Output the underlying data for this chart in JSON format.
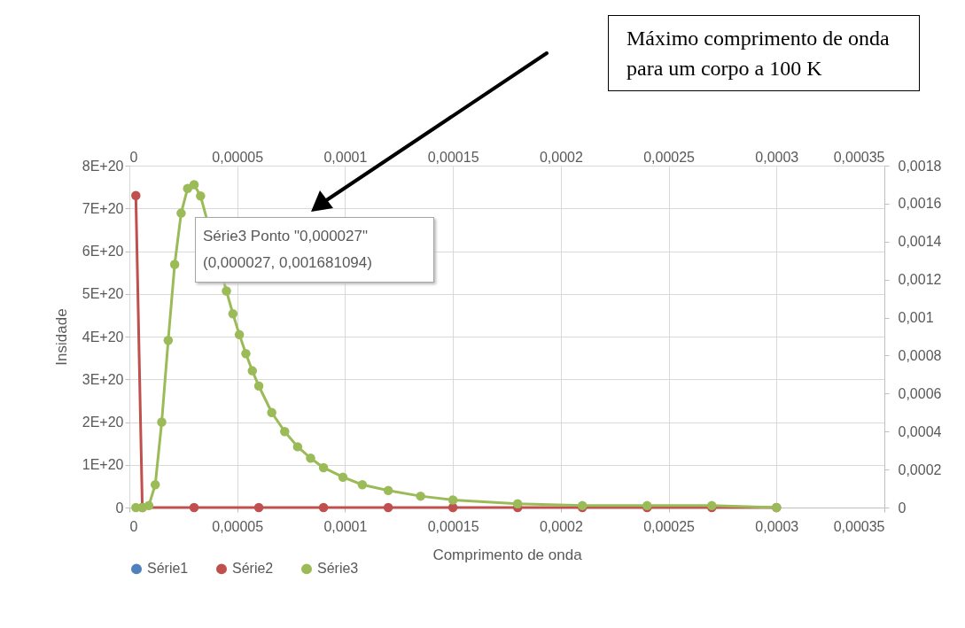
{
  "chart_data": {
    "type": "line",
    "xlabel": "Comprimento de onda",
    "ylabel": "Insidade",
    "xlim": [
      0,
      0.00035
    ],
    "xticks": [
      0,
      {
        "value": 5e-05,
        "label": "0,00005"
      },
      {
        "value": 0.0001,
        "label": "0,0001"
      },
      {
        "value": 0.00015,
        "label": "0,00015"
      },
      {
        "value": 0.0002,
        "label": "0,0002"
      },
      {
        "value": 0.00025,
        "label": "0,00025"
      },
      {
        "value": 0.0003,
        "label": "0,0003"
      },
      {
        "value": 0.00035,
        "label": "0,00035"
      }
    ],
    "x2lim": [
      0,
      0.00035
    ],
    "x2ticks": [
      0,
      {
        "value": 5e-05,
        "label": "0,00005"
      },
      {
        "value": 0.0001,
        "label": "0,0001"
      },
      {
        "value": 0.00015,
        "label": "0,00015"
      },
      {
        "value": 0.0002,
        "label": "0,0002"
      },
      {
        "value": 0.00025,
        "label": "0,00025"
      },
      {
        "value": 0.0003,
        "label": "0,0003"
      },
      {
        "value": 0.00035,
        "label": "0,00035"
      }
    ],
    "ylim": [
      0,
      8e+20
    ],
    "yticks": [
      0,
      {
        "value": 1e+20,
        "label": "1E+20"
      },
      {
        "value": 2e+20,
        "label": "2E+20"
      },
      {
        "value": 3e+20,
        "label": "3E+20"
      },
      {
        "value": 4e+20,
        "label": "4E+20"
      },
      {
        "value": 5e+20,
        "label": "5E+20"
      },
      {
        "value": 6e+20,
        "label": "6E+20"
      },
      {
        "value": 7e+20,
        "label": "7E+20"
      },
      {
        "value": 8e+20,
        "label": "8E+20"
      }
    ],
    "y2lim": [
      0,
      0.0018
    ],
    "y2ticks": [
      0,
      {
        "value": 0.0002,
        "label": "0,0002"
      },
      {
        "value": 0.0004,
        "label": "0,0004"
      },
      {
        "value": 0.0006,
        "label": "0,0006"
      },
      {
        "value": 0.0008,
        "label": "0,0008"
      },
      {
        "value": 0.001,
        "label": "0,001"
      },
      {
        "value": 0.0012,
        "label": "0,0012"
      },
      {
        "value": 0.0014,
        "label": "0,0014"
      },
      {
        "value": 0.0016,
        "label": "0,0016"
      },
      {
        "value": 0.0018,
        "label": "0,0018"
      }
    ],
    "grid": true,
    "legend": "bottom",
    "marker": "circle",
    "line_style": "solid",
    "series": [
      {
        "name": "Série1",
        "color": "#4f81bd"
      },
      {
        "name": "Série2",
        "color": "#c0504d",
        "x": [
          3e-06,
          6e-06,
          3e-05,
          6e-05,
          9e-05,
          0.00012,
          0.00015,
          0.00018,
          0.00021,
          0.00024,
          0.00027,
          0.0003
        ],
        "values": [
          7.3e+20,
          0,
          0,
          0,
          0,
          0,
          0,
          0,
          0,
          0,
          0,
          0
        ]
      },
      {
        "name": "Série3",
        "color": "#9bbb59",
        "axis": "y2",
        "x": [
          3e-06,
          6e-06,
          9e-06,
          1.2e-05,
          1.5e-05,
          1.8e-05,
          2.1e-05,
          2.4e-05,
          2.7e-05,
          3e-05,
          3.3e-05,
          4.5e-05,
          4.8e-05,
          5.1e-05,
          5.4e-05,
          5.7e-05,
          6e-05,
          6.6e-05,
          7.2e-05,
          7.8e-05,
          8.4e-05,
          9e-05,
          9.9e-05,
          0.000108,
          0.00012,
          0.000135,
          0.00015,
          0.00018,
          0.00021,
          0.00024,
          0.00027,
          0.0003
        ],
        "values": [
          0,
          0,
          1e-05,
          0.00012,
          0.00045,
          0.00088,
          0.00128,
          0.00155,
          0.00168,
          0.0017,
          0.00164,
          0.00114,
          0.00102,
          0.00091,
          0.00081,
          0.00072,
          0.00064,
          0.0005,
          0.0004,
          0.00032,
          0.00026,
          0.00021,
          0.00016,
          0.00012,
          9e-05,
          6e-05,
          4e-05,
          2e-05,
          1e-05,
          1e-05,
          1e-05,
          0
        ]
      }
    ],
    "annotations": [
      "Série3 Ponto \"0,000027\"\n(0,000027, 0,001681094)",
      "Máximo comprimento de onda para um corpo a 100 K"
    ]
  }
}
